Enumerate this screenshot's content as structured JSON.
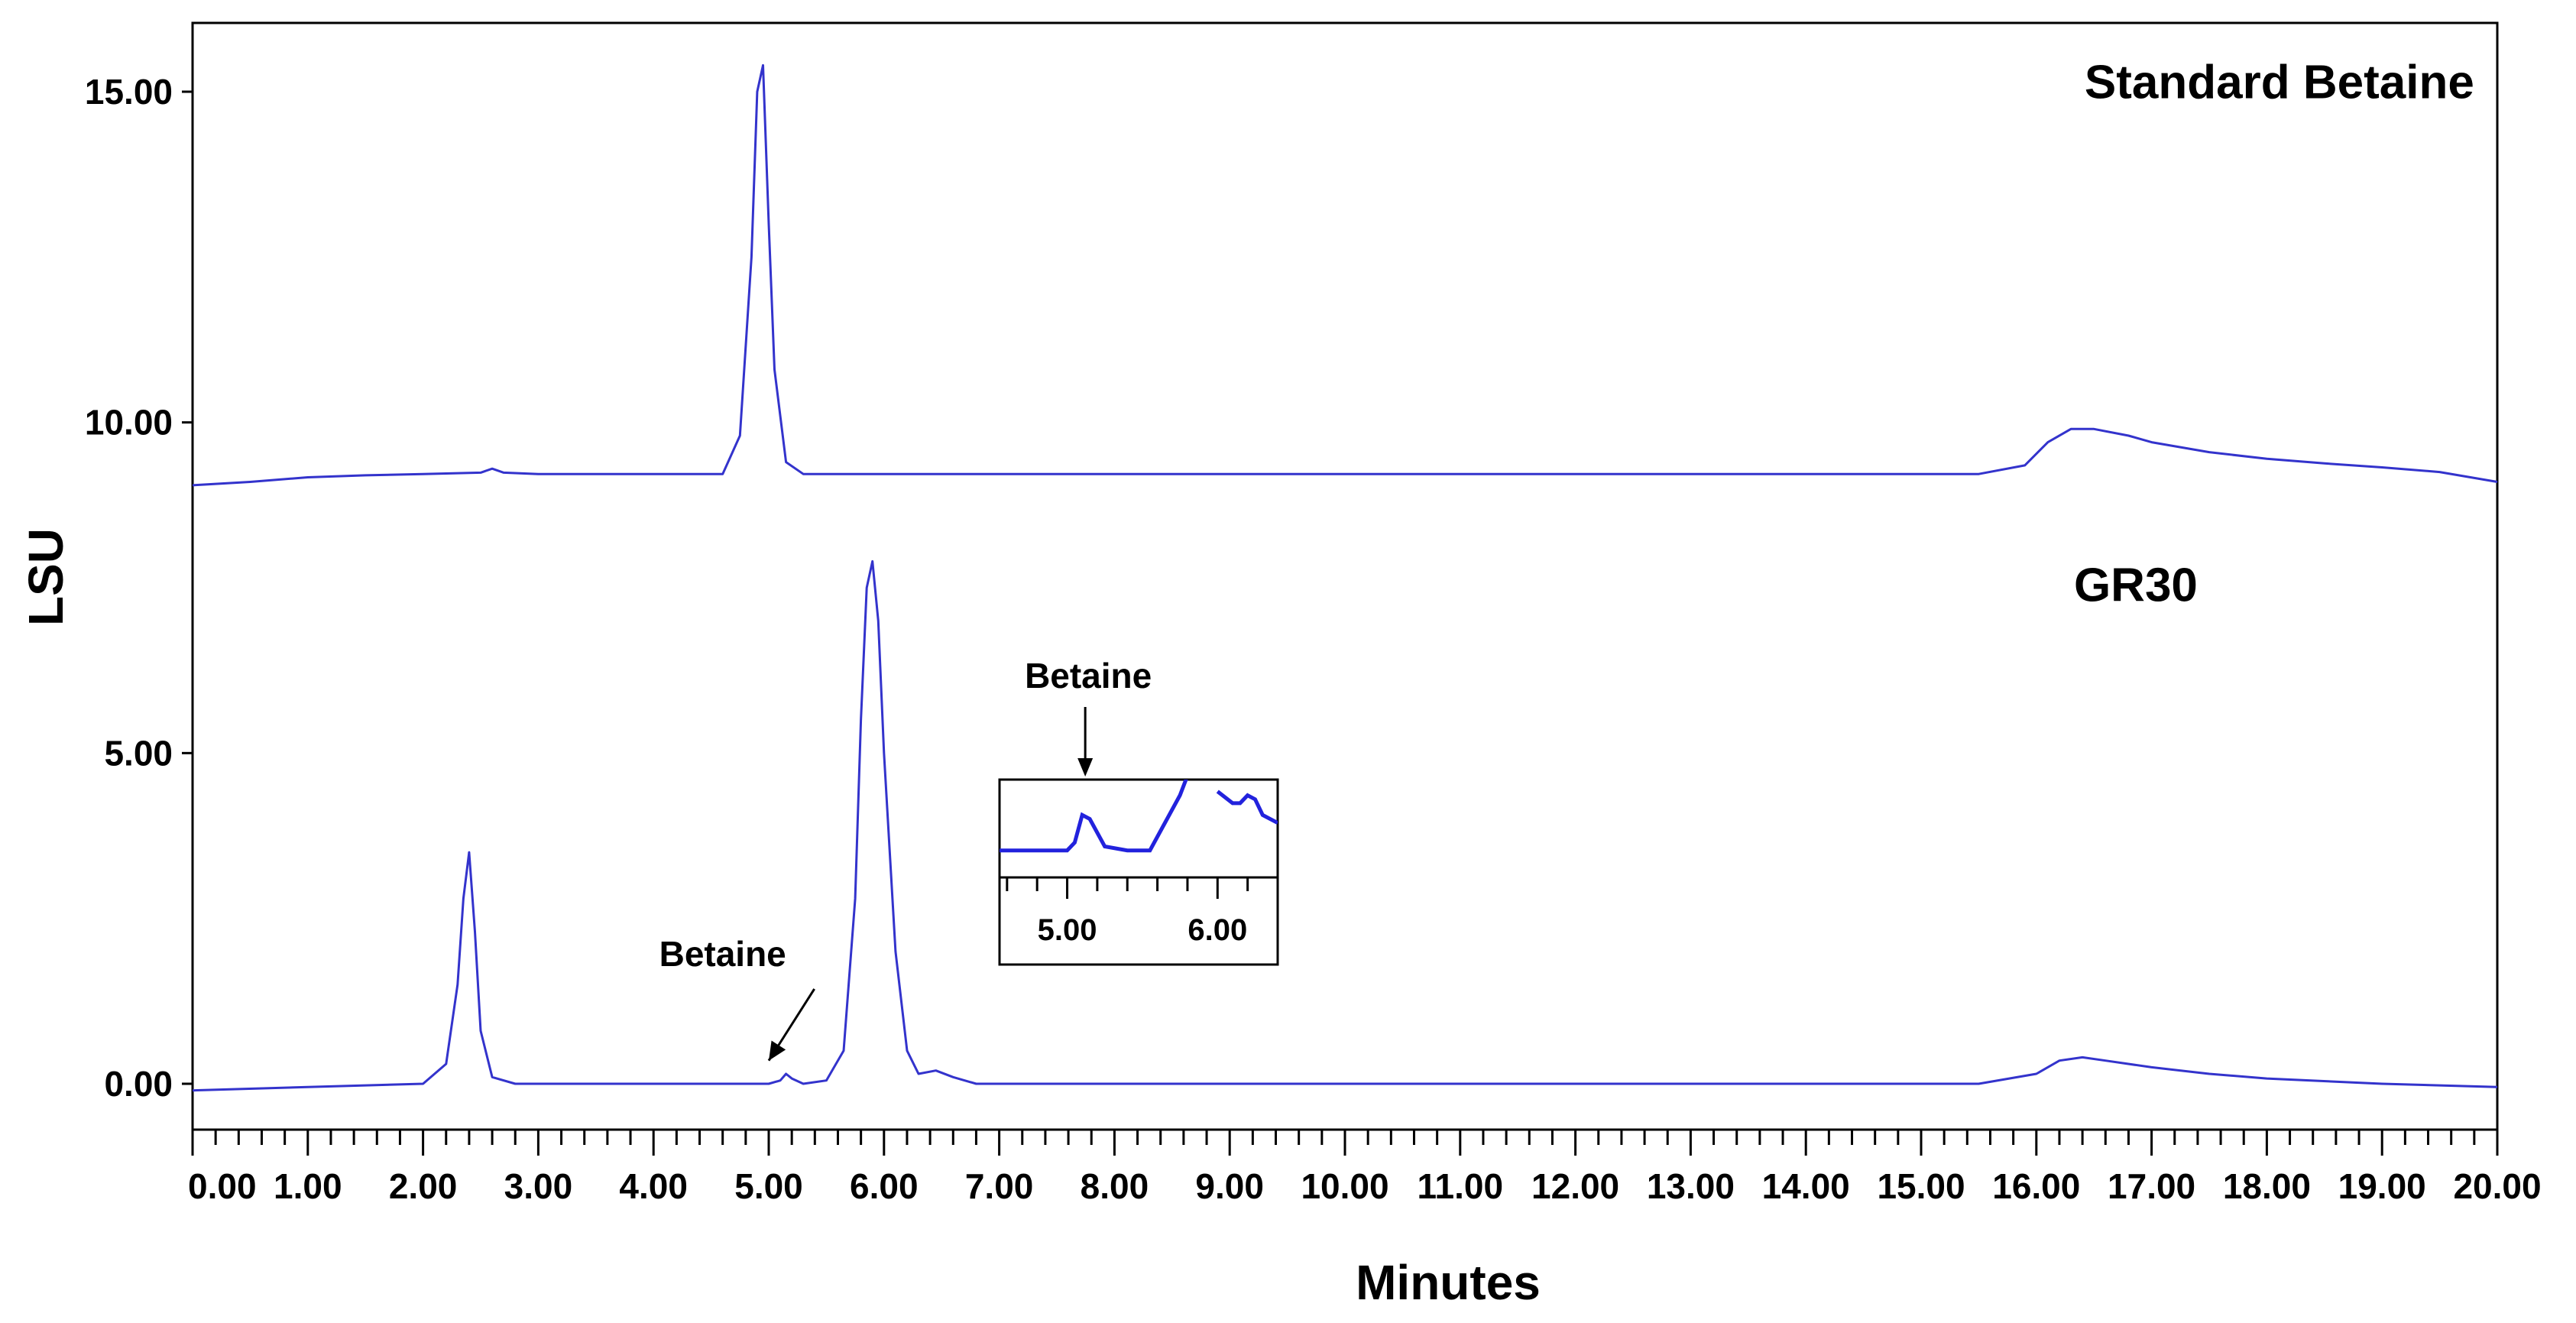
{
  "chart_data": {
    "type": "line",
    "xlabel": "Minutes",
    "ylabel": "LSU",
    "xlim": [
      0,
      20
    ],
    "ylim": [
      -0.7,
      16
    ],
    "x_ticks": [
      "0.00",
      "1.00",
      "2.00",
      "3.00",
      "4.00",
      "5.00",
      "6.00",
      "7.00",
      "8.00",
      "9.00",
      "10.00",
      "11.00",
      "12.00",
      "13.00",
      "14.00",
      "15.00",
      "16.00",
      "17.00",
      "18.00",
      "19.00",
      "20.00"
    ],
    "y_ticks": [
      "0.00",
      "5.00",
      "10.00",
      "15.00"
    ],
    "grid": false,
    "line_color": "#3333cc",
    "series": [
      {
        "name": "Standard Betaine",
        "x": [
          0,
          0.5,
          1.0,
          1.5,
          2.0,
          2.5,
          2.6,
          2.7,
          3.0,
          4.0,
          4.6,
          4.75,
          4.85,
          4.9,
          4.95,
          5.0,
          5.05,
          5.15,
          5.3,
          6.0,
          8.0,
          10.0,
          12.0,
          14.0,
          15.5,
          15.9,
          16.1,
          16.3,
          16.5,
          16.8,
          17.0,
          17.5,
          18.0,
          18.5,
          19.0,
          19.5,
          20.0
        ],
        "y": [
          9.05,
          9.1,
          9.17,
          9.2,
          9.22,
          9.24,
          9.3,
          9.24,
          9.22,
          9.22,
          9.22,
          9.8,
          12.5,
          15.0,
          15.4,
          13.0,
          10.8,
          9.4,
          9.22,
          9.22,
          9.22,
          9.22,
          9.22,
          9.22,
          9.22,
          9.35,
          9.7,
          9.9,
          9.9,
          9.8,
          9.7,
          9.55,
          9.45,
          9.38,
          9.32,
          9.25,
          9.1
        ]
      },
      {
        "name": "GR30",
        "x": [
          0,
          1.0,
          2.0,
          2.2,
          2.3,
          2.35,
          2.4,
          2.45,
          2.5,
          2.6,
          2.8,
          3.5,
          4.5,
          5.0,
          5.1,
          5.15,
          5.2,
          5.3,
          5.5,
          5.65,
          5.75,
          5.8,
          5.85,
          5.9,
          5.95,
          6.0,
          6.1,
          6.2,
          6.3,
          6.45,
          6.6,
          6.8,
          8.0,
          10.0,
          12.0,
          14.0,
          15.5,
          16.0,
          16.2,
          16.4,
          16.6,
          17.0,
          17.5,
          18.0,
          19.0,
          20.0
        ],
        "y": [
          -0.1,
          -0.05,
          0.0,
          0.3,
          1.5,
          2.8,
          3.5,
          2.3,
          0.8,
          0.1,
          0.0,
          0.0,
          0.0,
          0.0,
          0.05,
          0.15,
          0.08,
          0.0,
          0.05,
          0.5,
          2.8,
          5.5,
          7.5,
          7.9,
          7.0,
          5.0,
          2.0,
          0.5,
          0.15,
          0.2,
          0.1,
          0.0,
          0.0,
          0.0,
          0.0,
          0.0,
          0.0,
          0.15,
          0.35,
          0.4,
          0.35,
          0.25,
          0.15,
          0.08,
          0.0,
          -0.05
        ]
      }
    ],
    "annotations": [
      {
        "text": "Standard Betaine",
        "x": 19.8,
        "y": 14.9,
        "anchor": "end",
        "role": "series-label"
      },
      {
        "text": "GR30",
        "x": 17.4,
        "y": 7.3,
        "anchor": "end",
        "role": "series-label"
      },
      {
        "text": "Betaine",
        "x": 4.6,
        "y": 1.78,
        "anchor": "middle",
        "role": "arrow-label",
        "arrow_to": [
          5.0,
          0.35
        ]
      }
    ],
    "inset": {
      "label": "Betaine",
      "x_ticks": [
        "5.00",
        "6.00"
      ],
      "xlim": [
        4.55,
        6.4
      ],
      "ylim": [
        -0.1,
        0.9
      ],
      "x": [
        4.55,
        4.8,
        5.0,
        5.05,
        5.1,
        5.15,
        5.25,
        5.4,
        5.55,
        5.75,
        5.85,
        5.9,
        6.0,
        6.1,
        6.15,
        6.2,
        6.25,
        6.3,
        6.4
      ],
      "y": [
        0.0,
        0.0,
        0.0,
        0.1,
        0.45,
        0.4,
        0.05,
        0.0,
        0.0,
        0.7,
        1.2,
        null,
        0.75,
        0.6,
        0.6,
        0.7,
        0.65,
        0.45,
        0.35
      ]
    }
  }
}
